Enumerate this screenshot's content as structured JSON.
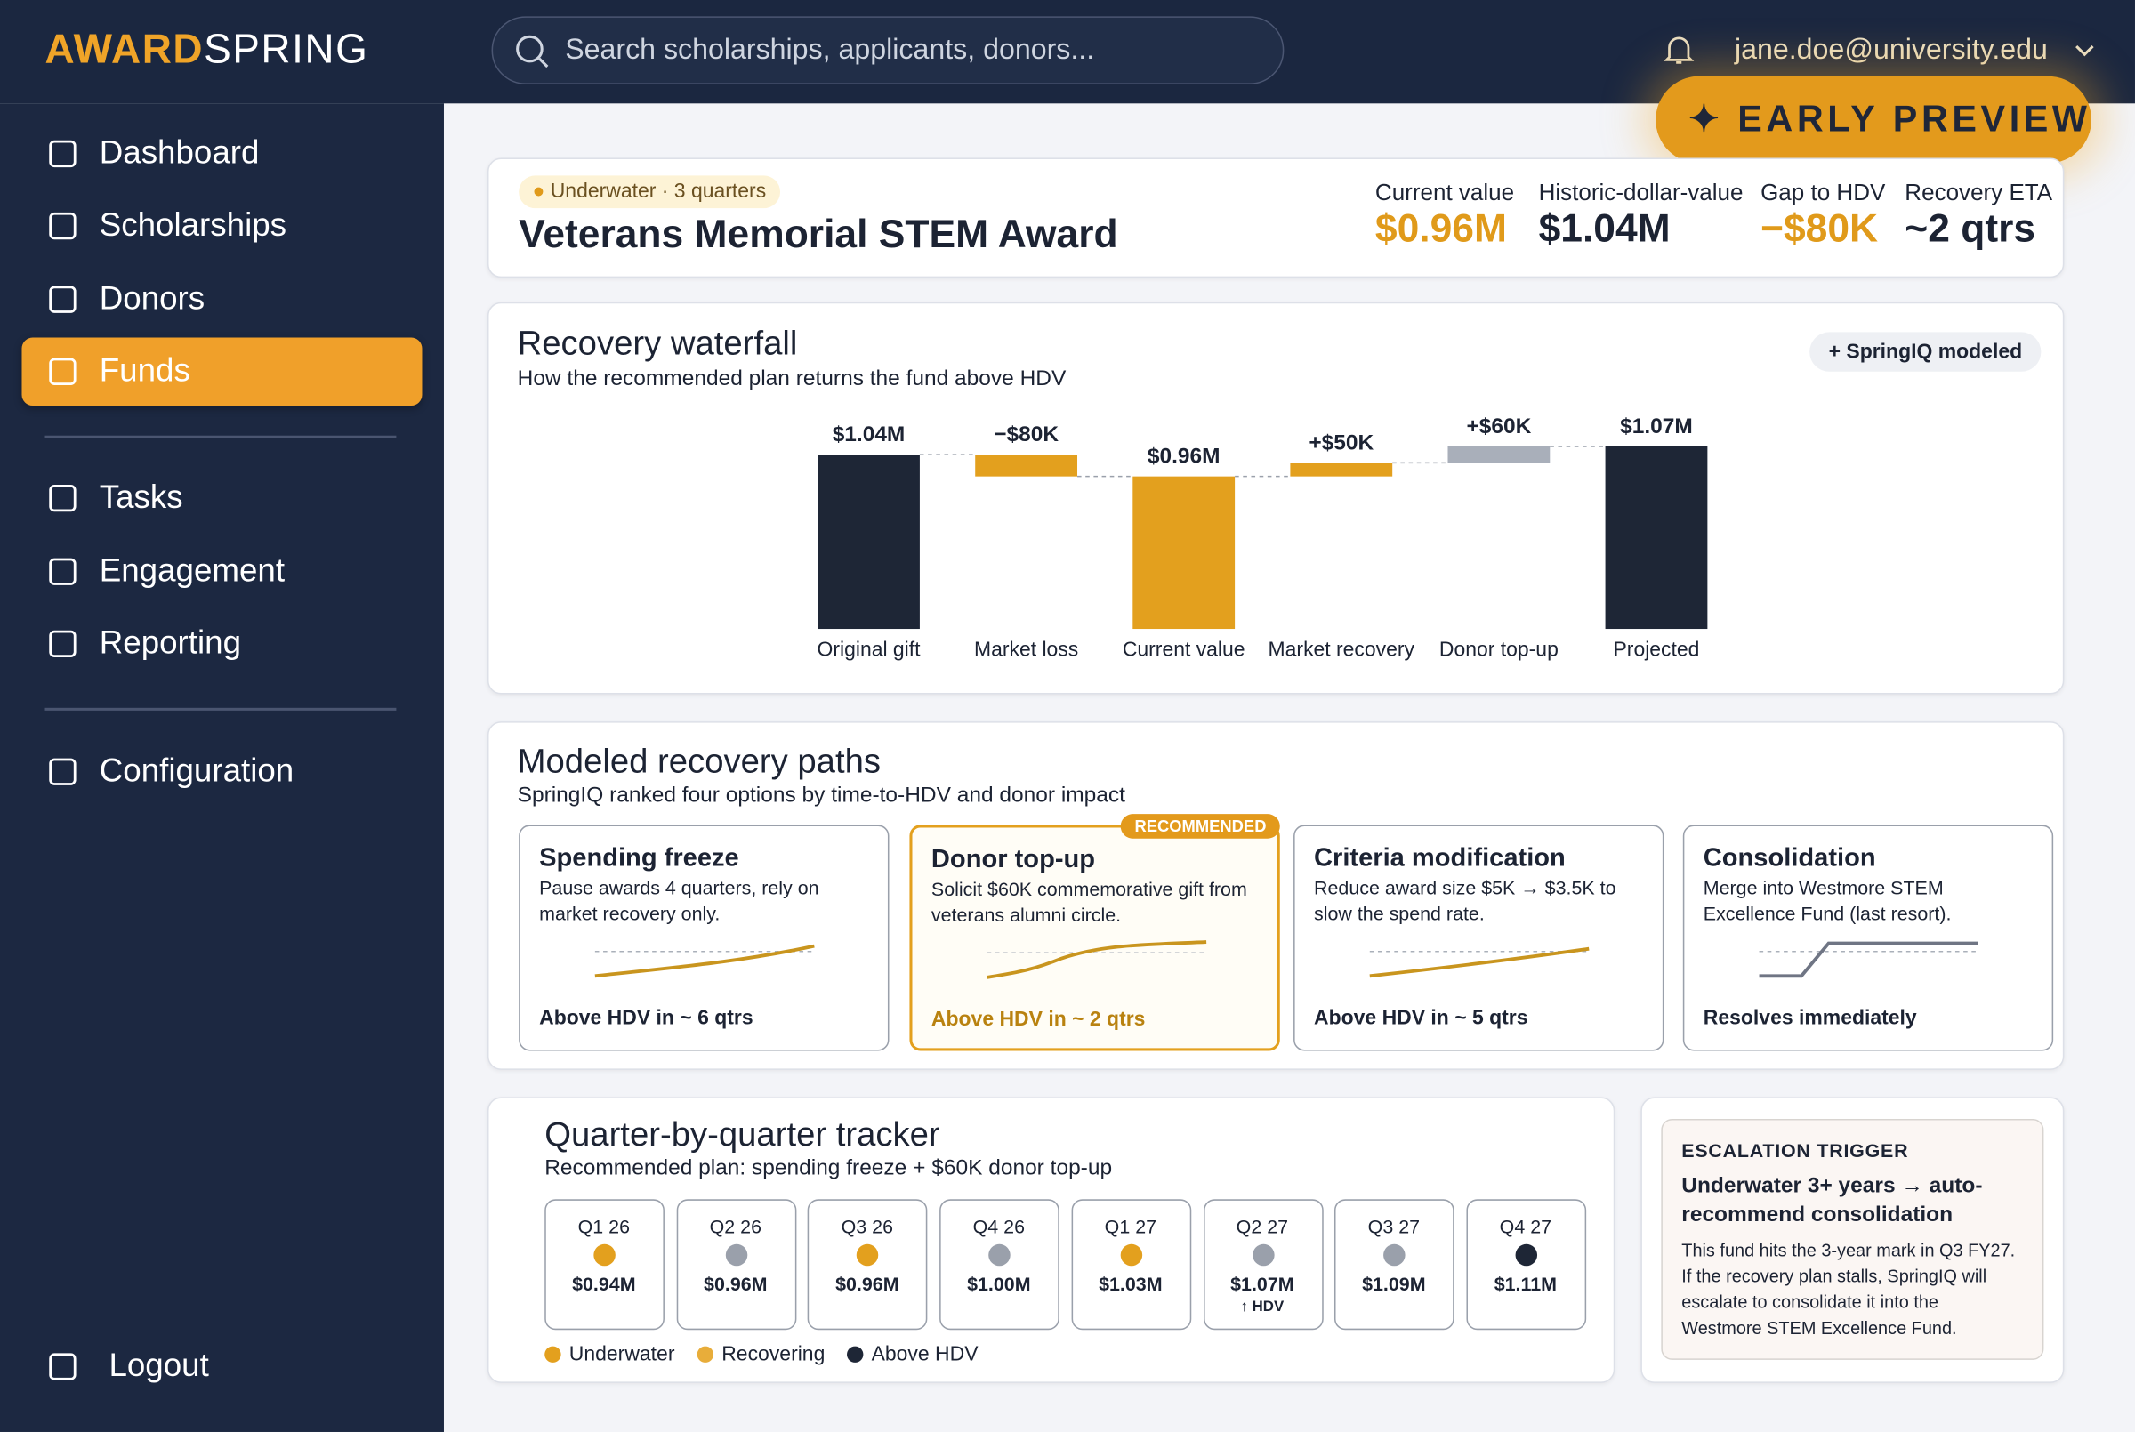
{
  "brand": {
    "name_a": "AWARD",
    "name_b": "SPRING"
  },
  "search": {
    "placeholder": "Search scholarships, applicants, donors..."
  },
  "user": {
    "email": "jane.doe@university.edu"
  },
  "preview_badge": "EARLY PREVIEW",
  "nav": {
    "primary": [
      "Dashboard",
      "Scholarships",
      "Donors",
      "Funds"
    ],
    "active": 3,
    "secondary": [
      "Tasks",
      "Engagement",
      "Reporting"
    ],
    "config": "Configuration",
    "logout": "Logout"
  },
  "fund": {
    "status": "Underwater · 3 quarters",
    "name": "Veterans Memorial STEM Award",
    "kpis": [
      {
        "label": "Current value",
        "value": "$0.96M",
        "color": "#e09a1a"
      },
      {
        "label": "Historic-dollar-value",
        "value": "$1.04M",
        "color": "#1c2333"
      },
      {
        "label": "Gap to HDV",
        "value": "−$80K",
        "color": "#e09a1a"
      },
      {
        "label": "Recovery ETA",
        "value": "~2 qtrs",
        "color": "#1c2333"
      }
    ]
  },
  "waterfall": {
    "title": "Recovery waterfall",
    "subtitle": "How the recommended plan returns the fund above HDV",
    "badge": "SpringIQ modeled",
    "chart_data": {
      "type": "waterfall",
      "categories": [
        "Original gift",
        "Market loss",
        "Current value",
        "Market recovery",
        "Donor top-up",
        "Projected"
      ],
      "values": [
        1.04,
        -0.08,
        0.96,
        0.05,
        0.06,
        1.07
      ],
      "value_labels": [
        "$1.04M",
        "−$80K",
        "$0.96M",
        "+$50K",
        "+$60K",
        "$1.07M"
      ],
      "kinds": [
        "total",
        "delta",
        "total",
        "delta",
        "delta",
        "total"
      ],
      "colors": [
        "#1e2636",
        "#e3a01e",
        "#e3a01e",
        "#e3a01e",
        "#a9afba",
        "#1e2636"
      ],
      "ylim": [
        0.4,
        1.1
      ]
    }
  },
  "paths": {
    "title": "Modeled recovery paths",
    "subtitle": "SpringIQ ranked four options by time-to-HDV and donor impact",
    "recommended_tag": "RECOMMENDED",
    "recommended": 1,
    "options": [
      {
        "title": "Spending freeze",
        "text": "Pause awards 4 quarters, rely on market recovery only.",
        "outcome": "Above HDV in ~ 6 qtrs"
      },
      {
        "title": "Donor top-up",
        "text": "Solicit $60K commemorative gift from veterans alumni circle.",
        "outcome": "Above HDV in ~ 2 qtrs"
      },
      {
        "title": "Criteria modification",
        "text": "Reduce award size $5K → $3.5K to slow the spend rate.",
        "outcome": "Above HDV in ~ 5 qtrs"
      },
      {
        "title": "Consolidation",
        "text": "Merge into Westmore STEM Excellence Fund (last resort).",
        "outcome": "Resolves immediately"
      }
    ]
  },
  "tracker": {
    "title": "Quarter-by-quarter tracker",
    "subtitle": "Recommended plan: spending freeze + $60K donor top-up",
    "quarters": [
      {
        "label": "Q1 26",
        "value": "$0.94M",
        "dot": "#e3a01e"
      },
      {
        "label": "Q2 26",
        "value": "$0.96M",
        "dot": "#9aa0ab"
      },
      {
        "label": "Q3 26",
        "value": "$0.96M",
        "dot": "#e3a01e"
      },
      {
        "label": "Q4 26",
        "value": "$1.00M",
        "dot": "#9aa0ab"
      },
      {
        "label": "Q1 27",
        "value": "$1.03M",
        "dot": "#e3a01e"
      },
      {
        "label": "Q2 27",
        "value": "$1.07M",
        "dot": "#9aa0ab",
        "note": "↑ HDV"
      },
      {
        "label": "Q3 27",
        "value": "$1.09M",
        "dot": "#9aa0ab"
      },
      {
        "label": "Q4 27",
        "value": "$1.11M",
        "dot": "#1e2636"
      }
    ],
    "legend": [
      {
        "name": "Underwater",
        "color": "#e3a01e"
      },
      {
        "name": "Recovering",
        "color": "#e8ad3a"
      },
      {
        "name": "Above HDV",
        "color": "#1e2636"
      }
    ]
  },
  "escalation": {
    "tag": "ESCALATION TRIGGER",
    "heading": "Underwater 3+ years → auto-recommend consolidation",
    "body": "This fund hits the 3-year mark in Q3 FY27. If the recovery plan stalls, SpringIQ will escalate to consolidate it into the Westmore STEM Excellence Fund."
  }
}
